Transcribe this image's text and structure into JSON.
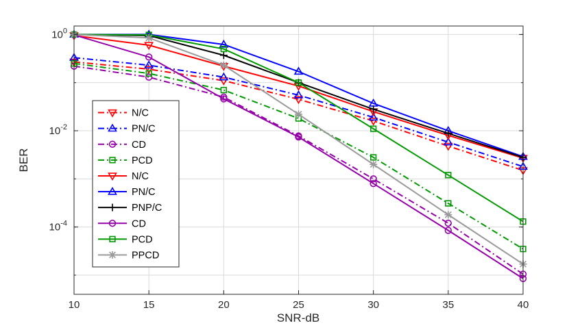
{
  "chart_data": {
    "type": "line",
    "title": "",
    "xlabel": "SNR-dB",
    "ylabel": "BER",
    "y_scale": "log",
    "xlim": [
      10,
      40
    ],
    "ylim": [
      4e-06,
      1.5
    ],
    "grid": true,
    "legend_position": "left",
    "x": [
      10,
      15,
      20,
      25,
      30,
      35,
      40
    ],
    "x_ticks": [
      "10",
      "15",
      "20",
      "25",
      "30",
      "35",
      "40"
    ],
    "y_ticks": [
      {
        "value": 1,
        "mantissa": "10",
        "exponent": "0"
      },
      {
        "value": 0.01,
        "mantissa": "10",
        "exponent": "-2"
      },
      {
        "value": 0.0001,
        "mantissa": "10",
        "exponent": "-4"
      }
    ],
    "series": [
      {
        "name": "N/C",
        "color": "#ff0000",
        "dash": "dashdot",
        "marker": "triangle-down",
        "values": [
          0.27,
          0.19,
          0.11,
          0.045,
          0.016,
          0.0048,
          0.0015
        ]
      },
      {
        "name": "PN/C",
        "color": "#0000ff",
        "dash": "dashdot",
        "marker": "triangle-up",
        "values": [
          0.33,
          0.23,
          0.13,
          0.055,
          0.019,
          0.0058,
          0.0018
        ]
      },
      {
        "name": "CD",
        "color": "#9400a8",
        "dash": "dashdot",
        "marker": "circle",
        "values": [
          0.22,
          0.13,
          0.05,
          0.0078,
          0.001,
          0.00012,
          1.05e-05
        ]
      },
      {
        "name": "PCD",
        "color": "#009900",
        "dash": "dashdot",
        "marker": "square",
        "values": [
          0.25,
          0.155,
          0.07,
          0.018,
          0.0028,
          0.00031,
          3.5e-05
        ]
      },
      {
        "name": "N/C",
        "color": "#ff0000",
        "dash": "solid",
        "marker": "triangle-down",
        "values": [
          0.95,
          0.6,
          0.22,
          0.085,
          0.025,
          0.008,
          0.0027
        ]
      },
      {
        "name": "PN/C",
        "color": "#0000ff",
        "dash": "solid",
        "marker": "triangle-up",
        "values": [
          1.0,
          1.0,
          0.62,
          0.17,
          0.037,
          0.01,
          0.0029
        ]
      },
      {
        "name": "PNP/C",
        "color": "#000000",
        "dash": "solid",
        "marker": "plus",
        "values": [
          1.0,
          0.95,
          0.37,
          0.1,
          0.028,
          0.0088,
          0.0028
        ]
      },
      {
        "name": "CD",
        "color": "#9400a8",
        "dash": "solid",
        "marker": "circle",
        "values": [
          0.98,
          0.34,
          0.046,
          0.0074,
          0.0008,
          8.5e-05,
          8.5e-06
        ]
      },
      {
        "name": "PCD",
        "color": "#009900",
        "dash": "solid",
        "marker": "square",
        "values": [
          1.0,
          0.98,
          0.5,
          0.1,
          0.011,
          0.0012,
          0.00013
        ]
      },
      {
        "name": "PPCD",
        "color": "#999999",
        "dash": "solid",
        "marker": "asterisk",
        "values": [
          1.0,
          0.85,
          0.23,
          0.022,
          0.002,
          0.00018,
          1.7e-05
        ]
      }
    ]
  }
}
